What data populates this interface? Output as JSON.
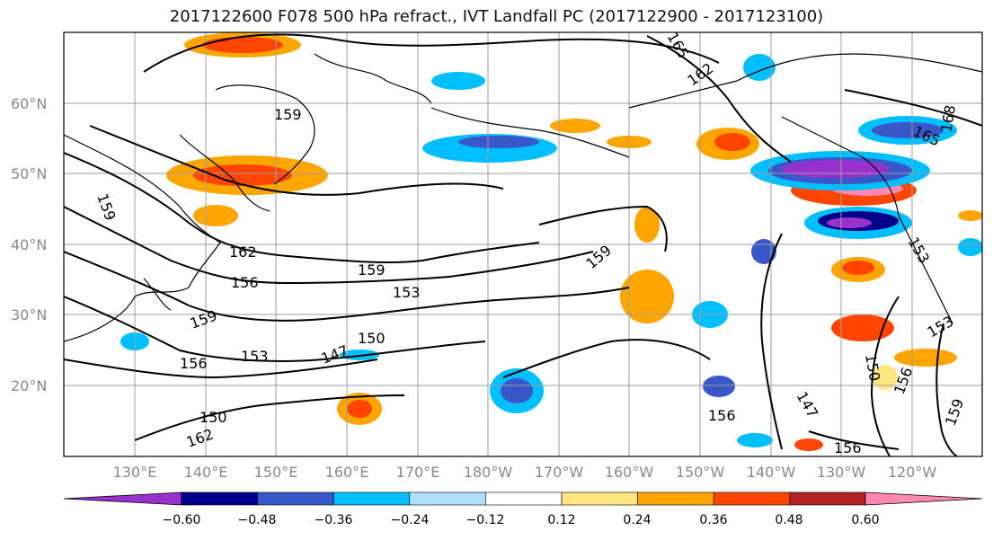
{
  "title": "2017122600 F078 500 hPa refract., IVT Landfall PC (2017122900 - 2017123100)",
  "map": {
    "lat_labels": [
      "60°N",
      "50°N",
      "40°N",
      "30°N",
      "20°N"
    ],
    "lon_labels": [
      "130°E",
      "140°E",
      "150°E",
      "160°E",
      "170°E",
      "180°W",
      "170°W",
      "160°W",
      "150°W",
      "140°W",
      "130°W",
      "120°W"
    ],
    "contour_labels": [
      "159",
      "162",
      "165",
      "159",
      "162",
      "156",
      "159",
      "153",
      "159",
      "150",
      "147",
      "156",
      "153",
      "159",
      "162",
      "156",
      "153",
      "150",
      "147",
      "156",
      "150",
      "156",
      "159",
      "165",
      "168",
      "153"
    ],
    "colors": {
      "land_outline": "#000000",
      "grid": "#9e9e9e"
    }
  },
  "colorbar": {
    "ticks": [
      "−0.60",
      "−0.48",
      "−0.36",
      "−0.24",
      "−0.12",
      "0.12",
      "0.24",
      "0.36",
      "0.48",
      "0.60"
    ],
    "colors": [
      "#9932cc",
      "#00008b",
      "#3a57c9",
      "#00bfff",
      "#b0e0ff",
      "#ffffff",
      "#ffe680",
      "#ffa500",
      "#ff4500",
      "#b22222",
      "#ff88b0"
    ]
  }
}
